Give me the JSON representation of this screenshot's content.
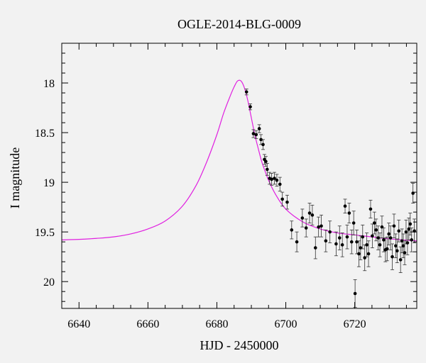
{
  "chart_data": {
    "type": "scatter",
    "title": "OGLE-2014-BLG-0009",
    "xlabel": "HJD - 2450000",
    "ylabel": "I magnitude",
    "xlim": [
      6635,
      6738
    ],
    "ylim": [
      20.27,
      17.6
    ],
    "y_inverted": true,
    "xticks": [
      6640,
      6660,
      6680,
      6700,
      6720
    ],
    "xtick_labels": [
      "6640",
      "6660",
      "6680",
      "6700",
      "6720"
    ],
    "yticks": [
      18,
      18.5,
      19,
      19.5,
      20
    ],
    "ytick_labels": [
      "18",
      "18.5",
      "19",
      "19.5",
      "20"
    ],
    "grid": false,
    "colors": {
      "model": "#e020e0",
      "points": "#000000",
      "background": "#f2f2f2"
    },
    "model": {
      "name": "",
      "x": [
        6635,
        6640,
        6645,
        6650,
        6655,
        6660,
        6665,
        6670,
        6674,
        6677,
        6680,
        6682,
        6684,
        6685,
        6686,
        6687,
        6688,
        6689,
        6690,
        6691,
        6692,
        6693,
        6694,
        6695,
        6697,
        6700,
        6705,
        6710,
        6715,
        6720,
        6725,
        6730,
        6738
      ],
      "y": [
        19.58,
        19.575,
        19.565,
        19.55,
        19.52,
        19.47,
        19.39,
        19.24,
        19.03,
        18.8,
        18.52,
        18.3,
        18.12,
        18.04,
        17.98,
        17.98,
        18.05,
        18.18,
        18.35,
        18.52,
        18.66,
        18.79,
        18.89,
        18.98,
        19.12,
        19.27,
        19.4,
        19.47,
        19.51,
        19.53,
        19.55,
        19.57,
        19.59
      ]
    },
    "series": [
      {
        "x": [
          6688.6,
          6689.7,
          6690.6,
          6691.4,
          6692.3,
          6692.8,
          6693.4,
          6693.8,
          6694.2,
          6694.6,
          6695.3,
          6695.9,
          6696.7,
          6697.4,
          6698.3,
          6699.0,
          6700.4,
          6701.7,
          6703.2,
          6704.8,
          6705.9,
          6706.9,
          6707.7,
          6708.6,
          6709.5,
          6710.3,
          6711.6,
          6712.8,
          6714.6,
          6715.6,
          6716.4,
          6717.2,
          6717.8,
          6718.4,
          6719.1,
          6719.7,
          6720.1,
          6720.6,
          6721.2,
          6721.7,
          6722.3,
          6722.9,
          6723.5,
          6724.0,
          6724.6,
          6725.1,
          6725.7,
          6726.2,
          6726.8,
          6727.3,
          6727.9,
          6728.4,
          6728.9,
          6729.4,
          6729.9,
          6730.4,
          6730.9,
          6731.4,
          6731.9,
          6732.3,
          6732.8,
          6733.3,
          6733.7,
          6734.1,
          6734.5,
          6734.9,
          6735.3,
          6735.7,
          6736.1,
          6736.5,
          6736.9,
          6737.3
        ],
        "y": [
          18.09,
          18.24,
          18.51,
          18.52,
          18.46,
          18.57,
          18.62,
          18.77,
          18.79,
          18.87,
          18.96,
          18.97,
          18.96,
          18.98,
          19.02,
          19.17,
          19.2,
          19.48,
          19.6,
          19.36,
          19.46,
          19.31,
          19.33,
          19.66,
          19.45,
          19.44,
          19.59,
          19.5,
          19.62,
          19.56,
          19.63,
          19.24,
          19.55,
          19.31,
          19.6,
          19.41,
          20.12,
          19.6,
          19.72,
          19.66,
          19.55,
          19.76,
          19.63,
          19.72,
          19.27,
          19.54,
          19.41,
          19.48,
          19.56,
          19.63,
          19.45,
          19.58,
          19.68,
          19.67,
          19.52,
          19.56,
          19.75,
          19.44,
          19.64,
          19.69,
          19.49,
          19.78,
          19.59,
          19.64,
          19.71,
          19.5,
          19.61,
          19.47,
          19.42,
          19.58,
          19.11,
          19.49
        ],
        "err": [
          0.03,
          0.03,
          0.04,
          0.04,
          0.04,
          0.05,
          0.05,
          0.05,
          0.05,
          0.06,
          0.06,
          0.06,
          0.06,
          0.06,
          0.07,
          0.07,
          0.07,
          0.09,
          0.1,
          0.09,
          0.09,
          0.1,
          0.1,
          0.11,
          0.1,
          0.11,
          0.11,
          0.11,
          0.12,
          0.12,
          0.12,
          0.07,
          0.12,
          0.1,
          0.12,
          0.12,
          0.14,
          0.12,
          0.13,
          0.12,
          0.12,
          0.13,
          0.12,
          0.13,
          0.09,
          0.12,
          0.11,
          0.11,
          0.12,
          0.12,
          0.11,
          0.12,
          0.12,
          0.12,
          0.11,
          0.12,
          0.13,
          0.12,
          0.12,
          0.12,
          0.11,
          0.13,
          0.12,
          0.12,
          0.12,
          0.12,
          0.12,
          0.11,
          0.11,
          0.12,
          0.1,
          0.12
        ]
      }
    ]
  }
}
